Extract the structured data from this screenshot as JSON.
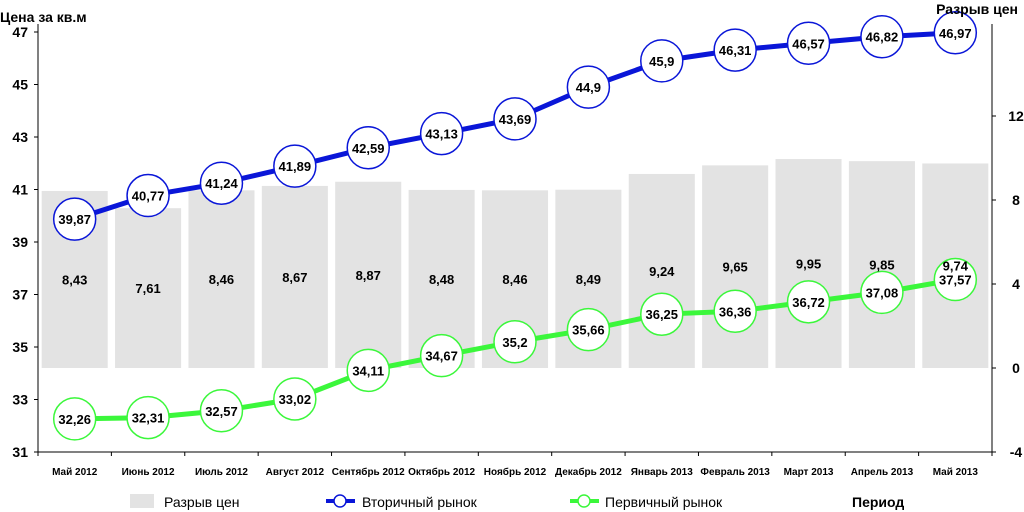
{
  "chart_data": {
    "type": "bar+line",
    "title": "",
    "ylabel_left": "Цена за кв.м",
    "ylabel_right": "Разрыв цен",
    "xlabel": "Период",
    "categories": [
      "Май 2012",
      "Июнь 2012",
      "Июль 2012",
      "Август 2012",
      "Сентябрь 2012",
      "Октябрь 2012",
      "Ноябрь 2012",
      "Декабрь 2012",
      "Январь 2013",
      "Февраль 2013",
      "Март 2013",
      "Апрель 2013",
      "Май 2013"
    ],
    "left_axis": {
      "min": 31,
      "max": 47,
      "ticks": [
        31,
        33,
        35,
        37,
        39,
        41,
        43,
        45,
        47
      ]
    },
    "right_axis": {
      "min": -4,
      "max": 16,
      "ticks": [
        -4,
        0,
        4,
        8,
        12
      ]
    },
    "bars": {
      "name": "Разрыв цен",
      "color": "#e3e3e3",
      "axis": "right",
      "values": [
        8.43,
        7.61,
        8.46,
        8.67,
        8.87,
        8.48,
        8.46,
        8.49,
        9.24,
        9.65,
        9.95,
        9.85,
        9.74
      ],
      "labels": [
        "8,43",
        "7,61",
        "8,46",
        "8,67",
        "8,87",
        "8,48",
        "8,46",
        "8,49",
        "9,24",
        "9,65",
        "9,95",
        "9,85",
        "9,74"
      ]
    },
    "series": [
      {
        "name": "Вторичный рынок",
        "color": "#0a16d8",
        "axis": "left",
        "values": [
          39.87,
          40.77,
          41.24,
          41.89,
          42.59,
          43.13,
          43.69,
          44.9,
          45.9,
          46.31,
          46.57,
          46.82,
          46.97
        ],
        "labels": [
          "39,87",
          "40,77",
          "41,24",
          "41,89",
          "42,59",
          "43,13",
          "43,69",
          "44,9",
          "45,9",
          "46,31",
          "46,57",
          "46,82",
          "46,97"
        ]
      },
      {
        "name": "Первичный рынок",
        "color": "#3bf73b",
        "axis": "left",
        "values": [
          32.26,
          32.31,
          32.57,
          33.02,
          34.11,
          34.67,
          35.2,
          35.66,
          36.25,
          36.36,
          36.72,
          37.08,
          37.57
        ],
        "labels": [
          "32,26",
          "32,31",
          "32,57",
          "33,02",
          "34,11",
          "34,67",
          "35,2",
          "35,66",
          "36,25",
          "36,36",
          "36,72",
          "37,08",
          "37,57"
        ]
      }
    ],
    "legend_position": "bottom"
  }
}
